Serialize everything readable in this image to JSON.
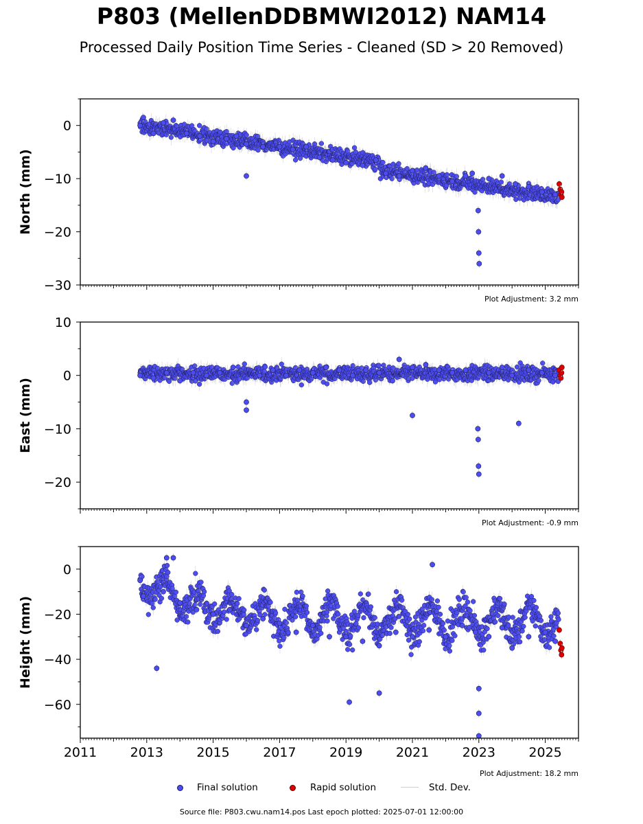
{
  "header": {
    "title": "P803 (MellenDDBMWI2012) NAM14",
    "subtitle": "Processed Daily Position Time Series - Cleaned (SD > 20 Removed)"
  },
  "chart_data": [
    {
      "type": "scatter",
      "ylabel": "North (mm)",
      "ylim": [
        -30,
        5
      ],
      "yticks": [
        0,
        -10,
        -20,
        -30
      ],
      "xlim": [
        2011,
        2026
      ],
      "adjustment_note": "Plot Adjustment: 3.2 mm",
      "series": [
        {
          "name": "Final solution",
          "color": "#4c4cf0",
          "points": [
            [
              2012.8,
              0
            ],
            [
              2012.9,
              1.5
            ],
            [
              2013.2,
              -1.5
            ],
            [
              2013.5,
              0.5
            ],
            [
              2013.8,
              1
            ],
            [
              2014.2,
              -1.5
            ],
            [
              2014.6,
              -2
            ],
            [
              2015.0,
              -3
            ],
            [
              2015.4,
              -2.5
            ],
            [
              2015.7,
              -2
            ],
            [
              2016.0,
              -3.5
            ],
            [
              2016.0,
              -9.5
            ],
            [
              2016.5,
              -4
            ],
            [
              2017.0,
              -4
            ],
            [
              2017.4,
              -4.5
            ],
            [
              2017.8,
              -4
            ],
            [
              2018.2,
              -6
            ],
            [
              2018.6,
              -6.5
            ],
            [
              2019.0,
              -7
            ],
            [
              2019.5,
              -7.5
            ],
            [
              2019.9,
              -6.5
            ],
            [
              2020.2,
              -9
            ],
            [
              2020.6,
              -9.5
            ],
            [
              2021.0,
              -8.5
            ],
            [
              2021.4,
              -8
            ],
            [
              2021.8,
              -9.5
            ],
            [
              2022.2,
              -10.5
            ],
            [
              2022.6,
              -9.5
            ],
            [
              2022.8,
              -9
            ],
            [
              2022.98,
              -16
            ],
            [
              2022.99,
              -20
            ],
            [
              2023.0,
              -24
            ],
            [
              2023.01,
              -26
            ],
            [
              2023.3,
              -10
            ],
            [
              2023.7,
              -9.5
            ],
            [
              2024.1,
              -11
            ],
            [
              2024.5,
              -11.5
            ],
            [
              2024.9,
              -12.5
            ],
            [
              2025.3,
              -13
            ]
          ]
        },
        {
          "name": "Rapid solution",
          "color": "#e00000",
          "points": [
            [
              2025.42,
              -11
            ],
            [
              2025.45,
              -12
            ],
            [
              2025.47,
              -13
            ],
            [
              2025.49,
              -12.5
            ],
            [
              2025.5,
              -13.5
            ]
          ]
        }
      ]
    },
    {
      "type": "scatter",
      "ylabel": "East (mm)",
      "ylim": [
        -25,
        10
      ],
      "yticks": [
        10,
        0,
        -10,
        -20
      ],
      "xlim": [
        2011,
        2026
      ],
      "adjustment_note": "Plot Adjustment: -0.9 mm",
      "series": [
        {
          "name": "Final solution",
          "color": "#4c4cf0",
          "points": [
            [
              2012.8,
              0
            ],
            [
              2013.2,
              -0.5
            ],
            [
              2013.6,
              0.5
            ],
            [
              2014.0,
              -1
            ],
            [
              2014.4,
              0.5
            ],
            [
              2014.8,
              0
            ],
            [
              2015.2,
              0.5
            ],
            [
              2015.6,
              1.5
            ],
            [
              2016.0,
              -5
            ],
            [
              2016.0,
              -6.5
            ],
            [
              2016.4,
              0
            ],
            [
              2016.8,
              1
            ],
            [
              2017.2,
              0
            ],
            [
              2017.6,
              1
            ],
            [
              2018.0,
              0.5
            ],
            [
              2018.4,
              1.5
            ],
            [
              2018.8,
              1
            ],
            [
              2019.2,
              0
            ],
            [
              2019.6,
              1
            ],
            [
              2020.0,
              0.5
            ],
            [
              2020.4,
              -1
            ],
            [
              2020.6,
              3
            ],
            [
              2021.0,
              1.5
            ],
            [
              2021.0,
              -7.5
            ],
            [
              2021.4,
              2
            ],
            [
              2021.8,
              1
            ],
            [
              2022.2,
              0.5
            ],
            [
              2022.6,
              1
            ],
            [
              2022.97,
              -10
            ],
            [
              2022.98,
              -12
            ],
            [
              2022.99,
              -17
            ],
            [
              2023.0,
              -18.5
            ],
            [
              2023.3,
              0.5
            ],
            [
              2023.7,
              1.5
            ],
            [
              2024.0,
              0
            ],
            [
              2024.2,
              -9
            ],
            [
              2024.5,
              1
            ],
            [
              2024.9,
              0.5
            ],
            [
              2025.3,
              0
            ]
          ]
        },
        {
          "name": "Rapid solution",
          "color": "#e00000",
          "points": [
            [
              2025.42,
              1
            ],
            [
              2025.45,
              0
            ],
            [
              2025.47,
              -0.5
            ],
            [
              2025.49,
              0.5
            ],
            [
              2025.5,
              1.5
            ]
          ]
        }
      ]
    },
    {
      "type": "scatter",
      "ylabel": "Height (mm)",
      "ylim": [
        -75,
        10
      ],
      "yticks": [
        0,
        -20,
        -40,
        -60
      ],
      "xlim": [
        2011,
        2026
      ],
      "xticks": [
        2011,
        2013,
        2015,
        2017,
        2019,
        2021,
        2023,
        2025
      ],
      "adjustment_note": "Plot Adjustment: 18.2 mm",
      "series": [
        {
          "name": "Final solution",
          "color": "#4c4cf0",
          "points": [
            [
              2012.8,
              -5
            ],
            [
              2012.9,
              -12
            ],
            [
              2013.3,
              -44
            ],
            [
              2013.5,
              -10
            ],
            [
              2013.6,
              5
            ],
            [
              2013.8,
              5
            ],
            [
              2014.0,
              -15
            ],
            [
              2014.5,
              -18
            ],
            [
              2015.0,
              -20
            ],
            [
              2015.5,
              -18
            ],
            [
              2016.0,
              -25
            ],
            [
              2016.5,
              -22
            ],
            [
              2017.0,
              -24
            ],
            [
              2017.5,
              -28
            ],
            [
              2018.0,
              -25
            ],
            [
              2018.5,
              -30
            ],
            [
              2019.0,
              -30
            ],
            [
              2019.1,
              -59
            ],
            [
              2019.5,
              -32
            ],
            [
              2020.0,
              -34
            ],
            [
              2020.0,
              -55
            ],
            [
              2020.5,
              -28
            ],
            [
              2021.0,
              -30
            ],
            [
              2021.5,
              -27
            ],
            [
              2021.6,
              2
            ],
            [
              2022.0,
              -30
            ],
            [
              2022.5,
              -25
            ],
            [
              2022.9,
              -28
            ],
            [
              2023.0,
              -53
            ],
            [
              2023.0,
              -64
            ],
            [
              2023.0,
              -74
            ],
            [
              2023.3,
              -30
            ],
            [
              2023.7,
              -26
            ],
            [
              2024.0,
              -35
            ],
            [
              2024.5,
              -30
            ],
            [
              2025.0,
              -28
            ],
            [
              2025.3,
              -32
            ]
          ]
        },
        {
          "name": "Rapid solution",
          "color": "#e00000",
          "points": [
            [
              2025.42,
              -27
            ],
            [
              2025.45,
              -33
            ],
            [
              2025.47,
              -36
            ],
            [
              2025.49,
              -38
            ],
            [
              2025.5,
              -35
            ]
          ]
        }
      ]
    }
  ],
  "legend": {
    "final": "Final solution",
    "rapid": "Rapid solution",
    "stddev": "Std. Dev."
  },
  "footer": {
    "source": "Source file: P803.cwu.nam14.pos  Last epoch plotted: 2025-07-01 12:00:00"
  }
}
